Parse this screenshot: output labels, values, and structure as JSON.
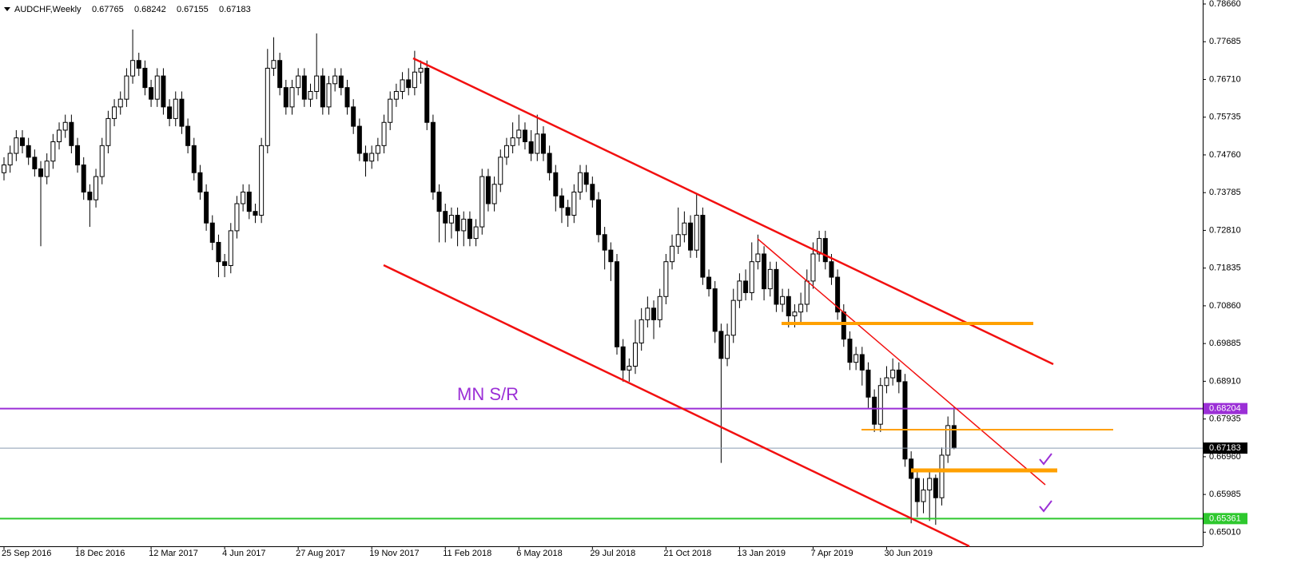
{
  "chart_data": {
    "type": "candlestick",
    "title": "AUDCHF,Weekly",
    "categories": [
      "25 Sep 2016",
      null,
      null,
      null,
      null,
      null,
      null,
      null,
      null,
      null,
      null,
      null,
      "18 Dec 2016",
      null,
      null,
      null,
      null,
      null,
      null,
      null,
      null,
      null,
      null,
      null,
      "12 Mar 2017",
      null,
      null,
      null,
      null,
      null,
      null,
      null,
      null,
      null,
      null,
      null,
      "4 Jun 2017",
      null,
      null,
      null,
      null,
      null,
      null,
      null,
      null,
      null,
      null,
      null,
      "27 Aug 2017",
      null,
      null,
      null,
      null,
      null,
      null,
      null,
      null,
      null,
      null,
      null,
      "19 Nov 2017",
      null,
      null,
      null,
      null,
      null,
      null,
      null,
      null,
      null,
      null,
      null,
      "11 Feb 2018",
      null,
      null,
      null,
      null,
      null,
      null,
      null,
      null,
      null,
      null,
      null,
      "6 May 2018",
      null,
      null,
      null,
      null,
      null,
      null,
      null,
      null,
      null,
      null,
      null,
      "29 Jul 2018",
      null,
      null,
      null,
      null,
      null,
      null,
      null,
      null,
      null,
      null,
      null,
      "21 Oct 2018",
      null,
      null,
      null,
      null,
      null,
      null,
      null,
      null,
      null,
      null,
      null,
      "13 Jan 2019",
      null,
      null,
      null,
      null,
      null,
      null,
      null,
      null,
      null,
      null,
      null,
      "7 Apr 2019",
      null,
      null,
      null,
      null,
      null,
      null,
      null,
      null,
      null,
      null,
      null,
      "30 Jun 2019",
      null,
      null,
      null,
      null,
      null,
      null,
      null,
      null,
      null,
      null,
      null
    ],
    "open": [
      0.743,
      0.745,
      0.748,
      0.752,
      0.75,
      0.747,
      0.744,
      0.742,
      0.746,
      0.751,
      0.754,
      0.756,
      0.75,
      0.745,
      0.738,
      0.736,
      0.742,
      0.75,
      0.757,
      0.76,
      0.762,
      0.768,
      0.772,
      0.77,
      0.765,
      0.762,
      0.768,
      0.76,
      0.757,
      0.762,
      0.755,
      0.75,
      0.743,
      0.738,
      0.73,
      0.725,
      0.72,
      0.719,
      0.728,
      0.735,
      0.738,
      0.733,
      0.732,
      0.75,
      0.77,
      0.772,
      0.765,
      0.76,
      0.765,
      0.768,
      0.762,
      0.764,
      0.768,
      0.76,
      0.766,
      0.768,
      0.765,
      0.76,
      0.755,
      0.748,
      0.746,
      0.748,
      0.75,
      0.756,
      0.762,
      0.764,
      0.767,
      0.765,
      0.769,
      0.77,
      0.756,
      0.738,
      0.733,
      0.73,
      0.732,
      0.728,
      0.731,
      0.726,
      0.729,
      0.742,
      0.735,
      0.74,
      0.747,
      0.75,
      0.752,
      0.754,
      0.751,
      0.748,
      0.753,
      0.748,
      0.743,
      0.737,
      0.734,
      0.732,
      0.738,
      0.743,
      0.74,
      0.736,
      0.727,
      0.723,
      0.72,
      0.698,
      0.692,
      0.693,
      0.699,
      0.705,
      0.708,
      0.705,
      0.711,
      0.72,
      0.724,
      0.727,
      0.73,
      0.723,
      0.732,
      0.716,
      0.713,
      0.702,
      0.695,
      0.701,
      0.71,
      0.715,
      0.712,
      0.72,
      0.722,
      0.713,
      0.718,
      0.709,
      0.711,
      0.706,
      0.707,
      0.709,
      0.715,
      0.722,
      0.726,
      0.72,
      0.716,
      0.707,
      0.7,
      0.694,
      0.696,
      0.692,
      0.685,
      0.678,
      0.688,
      0.69,
      0.692,
      0.689,
      0.669,
      0.664,
      0.658,
      0.661,
      0.664,
      0.659,
      0.67,
      0.67765
    ],
    "high": [
      0.747,
      0.75,
      0.754,
      0.754,
      0.752,
      0.749,
      0.746,
      0.748,
      0.753,
      0.756,
      0.758,
      0.758,
      0.752,
      0.747,
      0.74,
      0.744,
      0.752,
      0.759,
      0.762,
      0.764,
      0.77,
      0.78,
      0.774,
      0.772,
      0.767,
      0.77,
      0.77,
      0.762,
      0.764,
      0.764,
      0.757,
      0.752,
      0.745,
      0.74,
      0.732,
      0.727,
      0.722,
      0.73,
      0.737,
      0.74,
      0.74,
      0.735,
      0.752,
      0.775,
      0.778,
      0.774,
      0.767,
      0.767,
      0.77,
      0.77,
      0.766,
      0.779,
      0.77,
      0.768,
      0.77,
      0.77,
      0.767,
      0.762,
      0.757,
      0.75,
      0.75,
      0.752,
      0.758,
      0.764,
      0.766,
      0.769,
      0.77,
      0.7745,
      0.772,
      0.772,
      0.758,
      0.74,
      0.735,
      0.734,
      0.734,
      0.733,
      0.733,
      0.731,
      0.744,
      0.744,
      0.742,
      0.749,
      0.752,
      0.756,
      0.758,
      0.756,
      0.754,
      0.758,
      0.755,
      0.75,
      0.745,
      0.739,
      0.736,
      0.74,
      0.745,
      0.745,
      0.742,
      0.738,
      0.729,
      0.725,
      0.722,
      0.7,
      0.695,
      0.705,
      0.708,
      0.711,
      0.71,
      0.713,
      0.722,
      0.727,
      0.734,
      0.733,
      0.732,
      0.7375,
      0.734,
      0.718,
      0.715,
      0.704,
      0.704,
      0.713,
      0.717,
      0.718,
      0.725,
      0.727,
      0.724,
      0.72,
      0.72,
      0.713,
      0.713,
      0.709,
      0.712,
      0.718,
      0.725,
      0.728,
      0.728,
      0.722,
      0.718,
      0.709,
      0.702,
      0.698,
      0.698,
      0.694,
      0.687,
      0.69,
      0.693,
      0.695,
      0.694,
      0.691,
      0.671,
      0.666,
      0.664,
      0.666,
      0.665,
      0.672,
      0.68,
      0.68242
    ],
    "low": [
      0.741,
      0.743,
      0.746,
      0.748,
      0.745,
      0.742,
      0.724,
      0.74,
      0.744,
      0.749,
      0.752,
      0.748,
      0.743,
      0.736,
      0.729,
      0.734,
      0.74,
      0.748,
      0.755,
      0.758,
      0.76,
      0.766,
      0.768,
      0.763,
      0.76,
      0.76,
      0.758,
      0.755,
      0.755,
      0.753,
      0.748,
      0.741,
      0.736,
      0.728,
      0.723,
      0.716,
      0.716,
      0.717,
      0.726,
      0.733,
      0.731,
      0.73,
      0.73,
      0.748,
      0.768,
      0.763,
      0.758,
      0.758,
      0.763,
      0.76,
      0.76,
      0.762,
      0.758,
      0.758,
      0.764,
      0.763,
      0.758,
      0.753,
      0.746,
      0.742,
      0.744,
      0.746,
      0.748,
      0.754,
      0.76,
      0.762,
      0.763,
      0.763,
      0.766,
      0.754,
      0.736,
      0.725,
      0.725,
      0.726,
      0.724,
      0.724,
      0.724,
      0.724,
      0.727,
      0.733,
      0.733,
      0.738,
      0.745,
      0.748,
      0.75,
      0.749,
      0.746,
      0.746,
      0.746,
      0.741,
      0.733,
      0.73,
      0.729,
      0.73,
      0.736,
      0.738,
      0.734,
      0.725,
      0.718,
      0.715,
      0.696,
      0.689,
      0.689,
      0.691,
      0.697,
      0.703,
      0.7,
      0.703,
      0.709,
      0.718,
      0.722,
      0.725,
      0.721,
      0.721,
      0.714,
      0.711,
      0.699,
      0.668,
      0.693,
      0.699,
      0.708,
      0.71,
      0.71,
      0.718,
      0.71,
      0.711,
      0.707,
      0.707,
      0.703,
      0.703,
      0.704,
      0.707,
      0.713,
      0.72,
      0.718,
      0.714,
      0.705,
      0.698,
      0.692,
      0.692,
      0.688,
      0.682,
      0.676,
      0.676,
      0.686,
      0.688,
      0.686,
      0.667,
      0.6524,
      0.654,
      0.655,
      0.653,
      0.652,
      0.657,
      0.668,
      0.67155
    ],
    "close": [
      0.745,
      0.748,
      0.752,
      0.75,
      0.747,
      0.744,
      0.742,
      0.746,
      0.751,
      0.754,
      0.756,
      0.75,
      0.745,
      0.738,
      0.736,
      0.742,
      0.75,
      0.757,
      0.76,
      0.762,
      0.768,
      0.772,
      0.77,
      0.765,
      0.762,
      0.768,
      0.76,
      0.757,
      0.762,
      0.755,
      0.75,
      0.743,
      0.738,
      0.73,
      0.725,
      0.72,
      0.719,
      0.728,
      0.735,
      0.738,
      0.733,
      0.732,
      0.75,
      0.77,
      0.772,
      0.765,
      0.76,
      0.765,
      0.768,
      0.762,
      0.764,
      0.768,
      0.76,
      0.766,
      0.768,
      0.765,
      0.76,
      0.755,
      0.748,
      0.746,
      0.748,
      0.75,
      0.756,
      0.762,
      0.764,
      0.767,
      0.765,
      0.769,
      0.77,
      0.756,
      0.738,
      0.733,
      0.73,
      0.732,
      0.728,
      0.731,
      0.726,
      0.729,
      0.742,
      0.735,
      0.74,
      0.747,
      0.75,
      0.752,
      0.754,
      0.751,
      0.748,
      0.753,
      0.748,
      0.743,
      0.737,
      0.734,
      0.732,
      0.738,
      0.743,
      0.74,
      0.736,
      0.727,
      0.723,
      0.72,
      0.698,
      0.692,
      0.693,
      0.699,
      0.705,
      0.708,
      0.705,
      0.711,
      0.72,
      0.724,
      0.727,
      0.73,
      0.723,
      0.732,
      0.716,
      0.713,
      0.702,
      0.695,
      0.701,
      0.71,
      0.715,
      0.712,
      0.72,
      0.722,
      0.713,
      0.718,
      0.709,
      0.711,
      0.706,
      0.707,
      0.709,
      0.715,
      0.722,
      0.726,
      0.72,
      0.716,
      0.707,
      0.7,
      0.694,
      0.696,
      0.692,
      0.685,
      0.678,
      0.688,
      0.69,
      0.692,
      0.689,
      0.669,
      0.664,
      0.658,
      0.661,
      0.664,
      0.659,
      0.67,
      0.67765,
      0.67183
    ],
    "ylim": [
      0.64646,
      0.78763
    ],
    "yticks": [
      {
        "value": 0.7866,
        "label": "0.78660"
      },
      0.77685,
      {
        "value": 0.7671,
        "label": "0.76710"
      },
      0.75735,
      {
        "value": 0.7476,
        "label": "0.74760"
      },
      0.73785,
      {
        "value": 0.7281,
        "label": "0.72810"
      },
      0.71835,
      {
        "value": 0.7086,
        "label": "0.70860"
      },
      0.69885,
      {
        "value": 0.6891,
        "label": "0.68910"
      },
      0.67935,
      {
        "value": 0.6696,
        "label": "0.66960"
      },
      0.65985,
      {
        "value": 0.6501,
        "label": "0.65010"
      }
    ],
    "levels": [
      {
        "value": 0.68204,
        "color": "#9b2fd6"
      },
      {
        "value": 0.65361,
        "color": "#2ec82e"
      }
    ],
    "annotations": [
      {
        "text": "MN S/R"
      }
    ]
  }
}
